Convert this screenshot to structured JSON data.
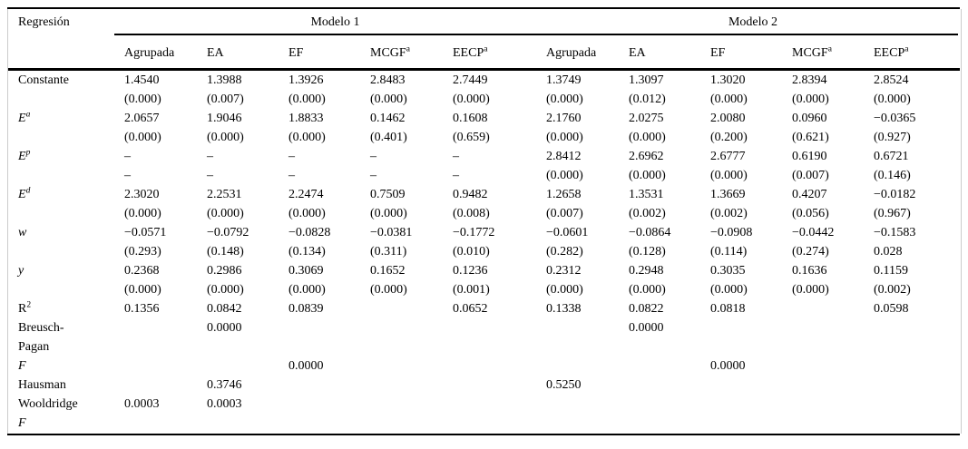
{
  "table": {
    "corner_label": "Regresión",
    "group_headers": [
      "Modelo 1",
      "Modelo 2"
    ],
    "column_headers": [
      {
        "label": "Agrupada",
        "sup": ""
      },
      {
        "label": "EA",
        "sup": ""
      },
      {
        "label": "EF",
        "sup": ""
      },
      {
        "label": "MCGF",
        "sup": "a"
      },
      {
        "label": "EECP",
        "sup": "a"
      }
    ],
    "rows": [
      {
        "id": "constante",
        "label": [
          {
            "text": "Constante"
          }
        ],
        "values": [
          "1.4540",
          "1.3988",
          "1.3926",
          "2.8483",
          "2.7449",
          "1.3749",
          "1.3097",
          "1.3020",
          "2.8394",
          "2.8524"
        ],
        "pvalues": [
          "(0.000)",
          "(0.007)",
          "(0.000)",
          "(0.000)",
          "(0.000)",
          "(0.000)",
          "(0.012)",
          "(0.000)",
          "(0.000)",
          "(0.000)"
        ]
      },
      {
        "id": "e-a",
        "label": [
          {
            "text": "E",
            "italic": true
          },
          {
            "text": "a",
            "italic": true,
            "sup": true
          }
        ],
        "values": [
          "2.0657",
          "1.9046",
          "1.8833",
          "0.1462",
          "0.1608",
          "2.1760",
          "2.0275",
          "2.0080",
          "0.0960",
          "−0.0365"
        ],
        "pvalues": [
          "(0.000)",
          "(0.000)",
          "(0.000)",
          "(0.401)",
          "(0.659)",
          "(0.000)",
          "(0.000)",
          "(0.200)",
          "(0.621)",
          "(0.927)"
        ]
      },
      {
        "id": "e-p",
        "label": [
          {
            "text": "E",
            "italic": true
          },
          {
            "text": "p",
            "italic": true,
            "sup": true
          }
        ],
        "values": [
          "–",
          "–",
          "–",
          "–",
          "–",
          "2.8412",
          "2.6962",
          "2.6777",
          "0.6190",
          "0.6721"
        ],
        "pvalues": [
          "–",
          "–",
          "–",
          "–",
          "–",
          "(0.000)",
          "(0.000)",
          "(0.000)",
          "(0.007)",
          "(0.146)"
        ]
      },
      {
        "id": "e-d",
        "label": [
          {
            "text": "E",
            "italic": true
          },
          {
            "text": "d",
            "italic": true,
            "sup": true
          }
        ],
        "values": [
          "2.3020",
          "2.2531",
          "2.2474",
          "0.7509",
          "0.9482",
          "1.2658",
          "1.3531",
          "1.3669",
          "0.4207",
          "−0.0182"
        ],
        "pvalues": [
          "(0.000)",
          "(0.000)",
          "(0.000)",
          "(0.000)",
          "(0.008)",
          "(0.007)",
          "(0.002)",
          "(0.002)",
          "(0.056)",
          "(0.967)"
        ]
      },
      {
        "id": "w",
        "label": [
          {
            "text": "w",
            "italic": true
          }
        ],
        "values": [
          "−0.0571",
          "−0.0792",
          "−0.0828",
          "−0.0381",
          "−0.1772",
          "−0.0601",
          "−0.0864",
          "−0.0908",
          "−0.0442",
          "−0.1583"
        ],
        "pvalues": [
          "(0.293)",
          "(0.148)",
          "(0.134)",
          "(0.311)",
          "(0.010)",
          "(0.282)",
          "(0.128)",
          "(0.114)",
          "(0.274)",
          "0.028"
        ]
      },
      {
        "id": "y",
        "label": [
          {
            "text": "y",
            "italic": true
          }
        ],
        "values": [
          "0.2368",
          "0.2986",
          "0.3069",
          "0.1652",
          "0.1236",
          "0.2312",
          "0.2948",
          "0.3035",
          "0.1636",
          "0.1159"
        ],
        "pvalues": [
          "(0.000)",
          "(0.000)",
          "(0.000)",
          "(0.000)",
          "(0.001)",
          "(0.000)",
          "(0.000)",
          "(0.000)",
          "(0.000)",
          "(0.002)"
        ]
      },
      {
        "id": "r2",
        "label": [
          {
            "text": "R"
          },
          {
            "text": "2",
            "sup": true
          }
        ],
        "values": [
          "0.1356",
          "0.0842",
          "0.0839",
          "",
          "0.0652",
          "0.1338",
          "0.0822",
          "0.0818",
          "",
          "0.0598"
        ]
      },
      {
        "id": "breusch-pagan",
        "label": [
          {
            "text": "Breusch-"
          }
        ],
        "label2": [
          {
            "text": "Pagan"
          }
        ],
        "values": [
          "",
          "0.0000",
          "",
          "",
          "",
          "",
          "0.0000",
          "",
          "",
          ""
        ]
      },
      {
        "id": "f",
        "label": [
          {
            "text": "F",
            "italic": true
          }
        ],
        "values": [
          "",
          "",
          "0.0000",
          "",
          "",
          "",
          "",
          "0.0000",
          "",
          ""
        ]
      },
      {
        "id": "hausman",
        "label": [
          {
            "text": "Hausman"
          }
        ],
        "values": [
          "",
          "0.3746",
          "",
          "",
          "",
          "0.5250",
          "",
          "",
          "",
          ""
        ]
      },
      {
        "id": "wooldridge-f",
        "label": [
          {
            "text": "Wooldridge"
          }
        ],
        "label2": [
          {
            "text": "F",
            "italic": true
          }
        ],
        "values": [
          "0.0003",
          "0.0003",
          "",
          "",
          "",
          "",
          "",
          "",
          "",
          ""
        ]
      }
    ]
  }
}
